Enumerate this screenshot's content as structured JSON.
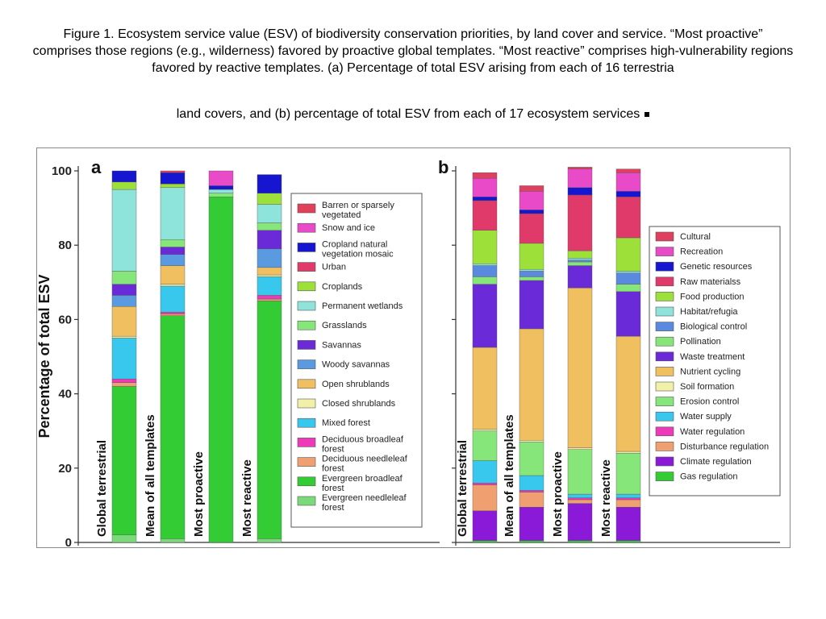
{
  "caption": {
    "line1": "Figure 1. Ecosystem service value (ESV) of biodiversity conservation priorities, by land cover and service. “Most proactive” comprises those regions (e.g., wilderness) favored by proactive global templates. “Most reactive” comprises high-vulnerability regions favored by reactive templates. (a) Percentage of total ESV arising from each of 16 terrestria",
    "line2": "land covers, and (b) percentage of total ESV from each of 17 ecosystem services"
  },
  "colors": {
    "Barren or sparsely vegetated": "#e0405a",
    "Snow and ice": "#e84ac8",
    "Cropland natural vegetation mosaic": "#1616d0",
    "Urban": "#e03a6a",
    "Croplands": "#9ee03a",
    "Permanent wetlands": "#8ee4da",
    "Grasslands": "#86e67a",
    "Savannas": "#6a2ad8",
    "Woody savannas": "#5a9ae0",
    "Open shrublands": "#f0c060",
    "Closed shrublands": "#f0f0a8",
    "Mixed forest": "#38c8ee",
    "Deciduous broadleaf forest": "#ec3ab8",
    "Deciduous needleleaf forest": "#f0a070",
    "Evergreen broadleaf forest": "#34cc34",
    "Evergreen needleleaf forest": "#7ada7a",
    "Cultural": "#e04060",
    "Recreation": "#e84ac8",
    "Genetic resources": "#1616d0",
    "Raw materialss": "#e03a6a",
    "Food production": "#9ee03a",
    "Habitat/refugia": "#8ee4da",
    "Biological control": "#5a8ae0",
    "Pollination": "#86e67a",
    "Waste treatment": "#6a2ad8",
    "Nutrient cycling": "#f0c060",
    "Soil formation": "#f0f0a8",
    "Erosion control": "#86e67a",
    "Water supply": "#38c8ee",
    "Water regulation": "#ec3ab8",
    "Disturbance regulation": "#f0a070",
    "Climate regulation": "#8a1ad8",
    "Gas regulation": "#34cc34"
  },
  "chart_data": [
    {
      "type": "bar",
      "stacked": true,
      "panel": "a",
      "ylabel": "Percentage of total ESV",
      "ylim": [
        0,
        100
      ],
      "yticks": [
        "0",
        "20",
        "40",
        "60",
        "80",
        "100"
      ],
      "categories": [
        "Global terrestrial",
        "Mean of all templates",
        "Most proactive",
        "Most reactive"
      ],
      "legend_position": "right",
      "series": [
        {
          "name": "Evergreen needleleaf forest",
          "values": [
            2,
            1,
            0,
            1
          ]
        },
        {
          "name": "Evergreen broadleaf forest",
          "values": [
            40,
            60,
            93,
            64
          ]
        },
        {
          "name": "Deciduous needleleaf forest",
          "values": [
            1,
            0.5,
            0,
            0.5
          ]
        },
        {
          "name": "Deciduous broadleaf forest",
          "values": [
            1,
            0.5,
            0,
            1
          ]
        },
        {
          "name": "Mixed forest",
          "values": [
            11,
            7,
            0,
            5
          ]
        },
        {
          "name": "Closed shrublands",
          "values": [
            0.5,
            0.5,
            0,
            0.5
          ]
        },
        {
          "name": "Open shrublands",
          "values": [
            8,
            5,
            0,
            2
          ]
        },
        {
          "name": "Woody savannas",
          "values": [
            3,
            3,
            0,
            5
          ]
        },
        {
          "name": "Savannas",
          "values": [
            3,
            2,
            0,
            5
          ]
        },
        {
          "name": "Grasslands",
          "values": [
            3.5,
            2,
            1,
            2
          ]
        },
        {
          "name": "Permanent wetlands",
          "values": [
            22,
            14,
            1,
            5
          ]
        },
        {
          "name": "Croplands",
          "values": [
            2,
            1,
            0,
            3
          ]
        },
        {
          "name": "Urban",
          "values": [
            0,
            0,
            0,
            0
          ]
        },
        {
          "name": "Cropland natural vegetation mosaic",
          "values": [
            3,
            3,
            1,
            5
          ]
        },
        {
          "name": "Snow and ice",
          "values": [
            0,
            0,
            4,
            0
          ]
        },
        {
          "name": "Barren or sparsely vegetated",
          "values": [
            0,
            0.5,
            0,
            0
          ]
        }
      ]
    },
    {
      "type": "bar",
      "stacked": true,
      "panel": "b",
      "ylim": [
        0,
        100
      ],
      "categories": [
        "Global terrestrial",
        "Mean of all templates",
        "Most proactive",
        "Most reactive"
      ],
      "legend_position": "right",
      "series": [
        {
          "name": "Gas regulation",
          "values": [
            0.5,
            0.5,
            0.5,
            0.5
          ]
        },
        {
          "name": "Climate regulation",
          "values": [
            8,
            9,
            10,
            9
          ]
        },
        {
          "name": "Disturbance regulation",
          "values": [
            7,
            4,
            1,
            2
          ]
        },
        {
          "name": "Water regulation",
          "values": [
            0.5,
            0.5,
            0.5,
            0.5
          ]
        },
        {
          "name": "Water supply",
          "values": [
            6,
            4,
            1,
            1
          ]
        },
        {
          "name": "Erosion control",
          "values": [
            8,
            9,
            12,
            11
          ]
        },
        {
          "name": "Soil formation",
          "values": [
            0.5,
            0.5,
            0.5,
            0.5
          ]
        },
        {
          "name": "Nutrient cycling",
          "values": [
            22,
            30,
            43,
            31
          ]
        },
        {
          "name": "Waste treatment",
          "values": [
            17,
            13,
            6,
            12
          ]
        },
        {
          "name": "Pollination",
          "values": [
            2,
            1,
            1,
            2
          ]
        },
        {
          "name": "Biological control",
          "values": [
            3,
            1.5,
            0.5,
            3
          ]
        },
        {
          "name": "Habitat/refugia",
          "values": [
            0.5,
            0.5,
            0.5,
            0.5
          ]
        },
        {
          "name": "Food production",
          "values": [
            9,
            7,
            2,
            9
          ]
        },
        {
          "name": "Raw materialss",
          "values": [
            8,
            8,
            15,
            11
          ]
        },
        {
          "name": "Genetic resources",
          "values": [
            1,
            1,
            2,
            1.5
          ]
        },
        {
          "name": "Recreation",
          "values": [
            5,
            5,
            5,
            5
          ]
        },
        {
          "name": "Cultural",
          "values": [
            1.5,
            1.5,
            0.5,
            1
          ]
        }
      ]
    }
  ],
  "legend_a": [
    "Barren or sparsely vegetated",
    "Snow and ice",
    "Cropland natural vegetation mosaic",
    "Urban",
    "Croplands",
    "Permanent wetlands",
    "Grasslands",
    "Savannas",
    "Woody savannas",
    "Open shrublands",
    "Closed shrublands",
    "Mixed forest",
    "Deciduous broadleaf forest",
    "Deciduous needleleaf forest",
    "Evergreen broadleaf forest",
    "Evergreen needleleaf forest"
  ],
  "legend_b": [
    "Cultural",
    "Recreation",
    "Genetic resources",
    "Raw materialss",
    "Food production",
    "Habitat/refugia",
    "Biological control",
    "Pollination",
    "Waste treatment",
    "Nutrient cycling",
    "Soil formation",
    "Erosion control",
    "Water supply",
    "Water regulation",
    "Disturbance regulation",
    "Climate regulation",
    "Gas regulation"
  ]
}
